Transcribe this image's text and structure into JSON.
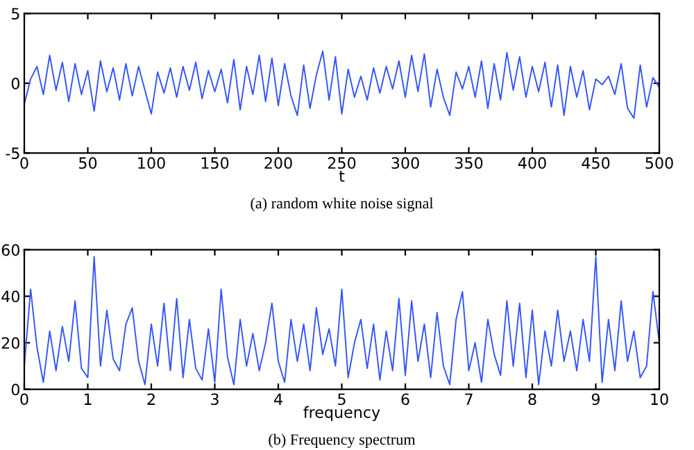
{
  "chart_data": [
    {
      "type": "line",
      "xlabel": "t",
      "annotations": [
        "(a) random white noise signal"
      ],
      "xlim": [
        0,
        500
      ],
      "ylim": [
        -5,
        5
      ],
      "xticks": [
        0,
        50,
        100,
        150,
        200,
        250,
        300,
        350,
        400,
        450,
        500
      ],
      "yticks": [
        -5,
        0,
        5
      ],
      "grid": false,
      "legend": false,
      "marker": "none",
      "line_style": "solid",
      "x": [
        0,
        5,
        10,
        15,
        20,
        25,
        30,
        35,
        40,
        45,
        50,
        55,
        60,
        65,
        70,
        75,
        80,
        85,
        90,
        95,
        100,
        105,
        110,
        115,
        120,
        125,
        130,
        135,
        140,
        145,
        150,
        155,
        160,
        165,
        170,
        175,
        180,
        185,
        190,
        195,
        200,
        205,
        210,
        215,
        220,
        225,
        230,
        235,
        240,
        245,
        250,
        255,
        260,
        265,
        270,
        275,
        280,
        285,
        290,
        295,
        300,
        305,
        310,
        315,
        320,
        325,
        330,
        335,
        340,
        345,
        350,
        355,
        360,
        365,
        370,
        375,
        380,
        385,
        390,
        395,
        400,
        405,
        410,
        415,
        420,
        425,
        430,
        435,
        440,
        445,
        450,
        455,
        460,
        465,
        470,
        475,
        480,
        485,
        490,
        495,
        500
      ],
      "series": [
        {
          "color": "#3355ff",
          "values": [
            -1.5,
            0.3,
            1.2,
            -0.8,
            2.0,
            -0.5,
            1.5,
            -1.3,
            1.4,
            -0.8,
            0.9,
            -2.0,
            1.6,
            -0.6,
            1.1,
            -1.2,
            1.4,
            -0.9,
            1.2,
            -0.5,
            -2.2,
            0.8,
            -0.7,
            1.1,
            -1.0,
            1.2,
            -0.5,
            1.5,
            -1.1,
            0.9,
            -0.6,
            1.0,
            -1.4,
            1.7,
            -1.9,
            1.2,
            -0.8,
            2.0,
            -1.3,
            1.8,
            -1.6,
            1.4,
            -0.9,
            -2.3,
            1.3,
            -1.8,
            0.6,
            2.3,
            -1.2,
            1.9,
            -2.2,
            1.0,
            -1.0,
            0.5,
            -1.2,
            1.1,
            -0.7,
            1.2,
            -0.4,
            1.6,
            -1.0,
            2.0,
            -0.6,
            2.1,
            -1.7,
            1.0,
            -1.0,
            -2.3,
            0.8,
            -0.4,
            1.2,
            -1.0,
            1.6,
            -1.8,
            1.4,
            -1.2,
            2.2,
            -0.5,
            1.9,
            -1.0,
            1.2,
            -0.6,
            1.5,
            -1.7,
            1.3,
            -2.3,
            1.2,
            -1.0,
            0.9,
            -1.9,
            0.3,
            -0.1,
            0.5,
            -0.8,
            1.4,
            -1.8,
            -2.5,
            1.3,
            -1.7,
            0.4,
            -0.3
          ]
        }
      ]
    },
    {
      "type": "line",
      "xlabel": "frequency",
      "annotations": [
        "(b) Frequency spectrum"
      ],
      "xlim": [
        0,
        10
      ],
      "ylim": [
        0,
        60
      ],
      "xticks": [
        0,
        1,
        2,
        3,
        4,
        5,
        6,
        7,
        8,
        9,
        10
      ],
      "yticks": [
        0,
        20,
        40,
        60
      ],
      "grid": false,
      "legend": false,
      "marker": "none",
      "line_style": "solid",
      "x": [
        0,
        0.1,
        0.2,
        0.3,
        0.4,
        0.5,
        0.6,
        0.7,
        0.8,
        0.9,
        1.0,
        1.1,
        1.2,
        1.3,
        1.4,
        1.5,
        1.6,
        1.7,
        1.8,
        1.9,
        2.0,
        2.1,
        2.2,
        2.3,
        2.4,
        2.5,
        2.6,
        2.7,
        2.8,
        2.9,
        3.0,
        3.1,
        3.2,
        3.3,
        3.4,
        3.5,
        3.6,
        3.7,
        3.8,
        3.9,
        4.0,
        4.1,
        4.2,
        4.3,
        4.4,
        4.5,
        4.6,
        4.7,
        4.8,
        4.9,
        5.0,
        5.1,
        5.2,
        5.3,
        5.4,
        5.5,
        5.6,
        5.7,
        5.8,
        5.9,
        6.0,
        6.1,
        6.2,
        6.3,
        6.4,
        6.5,
        6.6,
        6.7,
        6.8,
        6.9,
        7.0,
        7.1,
        7.2,
        7.3,
        7.4,
        7.5,
        7.6,
        7.7,
        7.8,
        7.9,
        8.0,
        8.1,
        8.2,
        8.3,
        8.4,
        8.5,
        8.6,
        8.7,
        8.8,
        8.9,
        9.0,
        9.1,
        9.2,
        9.3,
        9.4,
        9.5,
        9.6,
        9.7,
        9.8,
        9.9,
        10.0
      ],
      "series": [
        {
          "color": "#3355ff",
          "values": [
            10,
            43,
            18,
            3,
            25,
            8,
            27,
            12,
            38,
            9,
            5,
            57,
            10,
            34,
            13,
            8,
            28,
            35,
            12,
            2,
            28,
            10,
            37,
            8,
            39,
            5,
            30,
            9,
            4,
            26,
            3,
            43,
            14,
            2,
            30,
            10,
            24,
            8,
            20,
            37,
            12,
            3,
            30,
            12,
            28,
            8,
            35,
            15,
            26,
            10,
            43,
            5,
            20,
            30,
            9,
            28,
            4,
            25,
            8,
            39,
            6,
            38,
            12,
            28,
            5,
            33,
            10,
            2,
            30,
            42,
            8,
            20,
            3,
            30,
            15,
            6,
            38,
            10,
            37,
            5,
            34,
            2,
            25,
            10,
            34,
            12,
            25,
            8,
            30,
            12,
            57,
            3,
            30,
            8,
            38,
            12,
            25,
            5,
            10,
            42,
            20
          ]
        }
      ]
    }
  ]
}
